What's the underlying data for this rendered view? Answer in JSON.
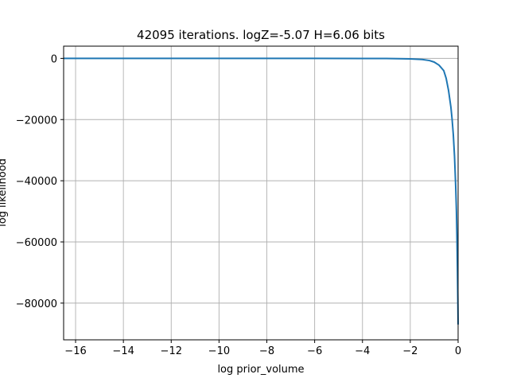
{
  "chart_data": {
    "type": "line",
    "title": "42095 iterations. logZ=-5.07 H=6.06 bits",
    "xlabel": "log prior_volume",
    "ylabel": "log likelihood",
    "xlim": [
      -16.5,
      0
    ],
    "ylim": [
      -92000,
      4000
    ],
    "xticks": [
      -16,
      -14,
      -12,
      -10,
      -8,
      -6,
      -4,
      -2,
      0
    ],
    "xtick_labels": [
      "−16",
      "−14",
      "−12",
      "−10",
      "−8",
      "−6",
      "−4",
      "−2",
      "0"
    ],
    "yticks": [
      0,
      -20000,
      -40000,
      -60000,
      -80000
    ],
    "ytick_labels": [
      "0",
      "−20000",
      "−40000",
      "−60000",
      "−80000"
    ],
    "grid": true,
    "line_color": "#1f77b4",
    "series": [
      {
        "x": [
          -16.5,
          -14,
          -12,
          -10,
          -8,
          -6,
          -4,
          -3,
          -2,
          -1.5,
          -1.2,
          -1.0,
          -0.8,
          -0.6,
          -0.5,
          -0.4,
          -0.3,
          -0.25,
          -0.2,
          -0.15,
          -0.1,
          -0.07,
          -0.05,
          -0.03,
          -0.02,
          -0.01,
          0
        ],
        "y": [
          -2,
          -2,
          -3,
          -4,
          -6,
          -10,
          -20,
          -40,
          -150,
          -350,
          -700,
          -1200,
          -2200,
          -4000,
          -6500,
          -10500,
          -16000,
          -20000,
          -25000,
          -32000,
          -42000,
          -50000,
          -58000,
          -68000,
          -74000,
          -80000,
          -87000
        ]
      }
    ]
  }
}
